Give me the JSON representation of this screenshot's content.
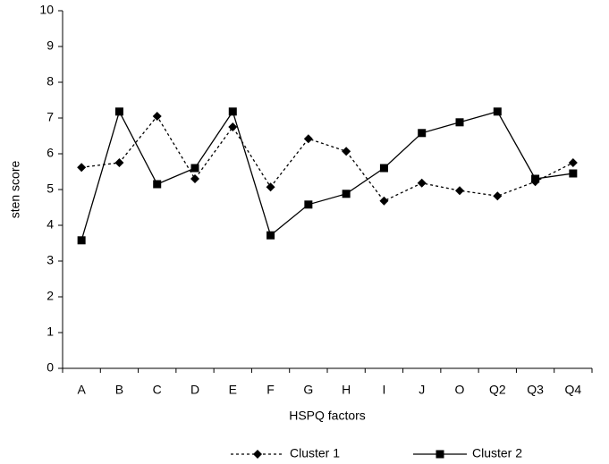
{
  "chart_data": {
    "type": "line",
    "x_label": "HSPQ factors",
    "y_label": "sten score",
    "categories": [
      "A",
      "B",
      "C",
      "D",
      "E",
      "F",
      "G",
      "H",
      "I",
      "J",
      "O",
      "Q2",
      "Q3",
      "Q4"
    ],
    "series": [
      {
        "name": "Cluster 1",
        "color": "#000000",
        "line_style": "dotted",
        "marker": "diamond",
        "values": [
          5.62,
          5.75,
          7.05,
          5.3,
          6.75,
          5.07,
          6.42,
          6.07,
          4.68,
          5.18,
          4.97,
          4.82,
          5.22,
          5.75
        ]
      },
      {
        "name": "Cluster 2",
        "color": "#000000",
        "line_style": "solid",
        "marker": "square",
        "values": [
          3.58,
          7.18,
          5.15,
          5.6,
          7.18,
          3.72,
          4.58,
          4.88,
          5.6,
          6.58,
          6.88,
          7.18,
          5.3,
          5.45
        ]
      }
    ],
    "ylim": [
      0,
      10
    ],
    "yticks": [
      0,
      1,
      2,
      3,
      4,
      5,
      6,
      7,
      8,
      9,
      10
    ],
    "grid": false,
    "legend": "bottom"
  }
}
